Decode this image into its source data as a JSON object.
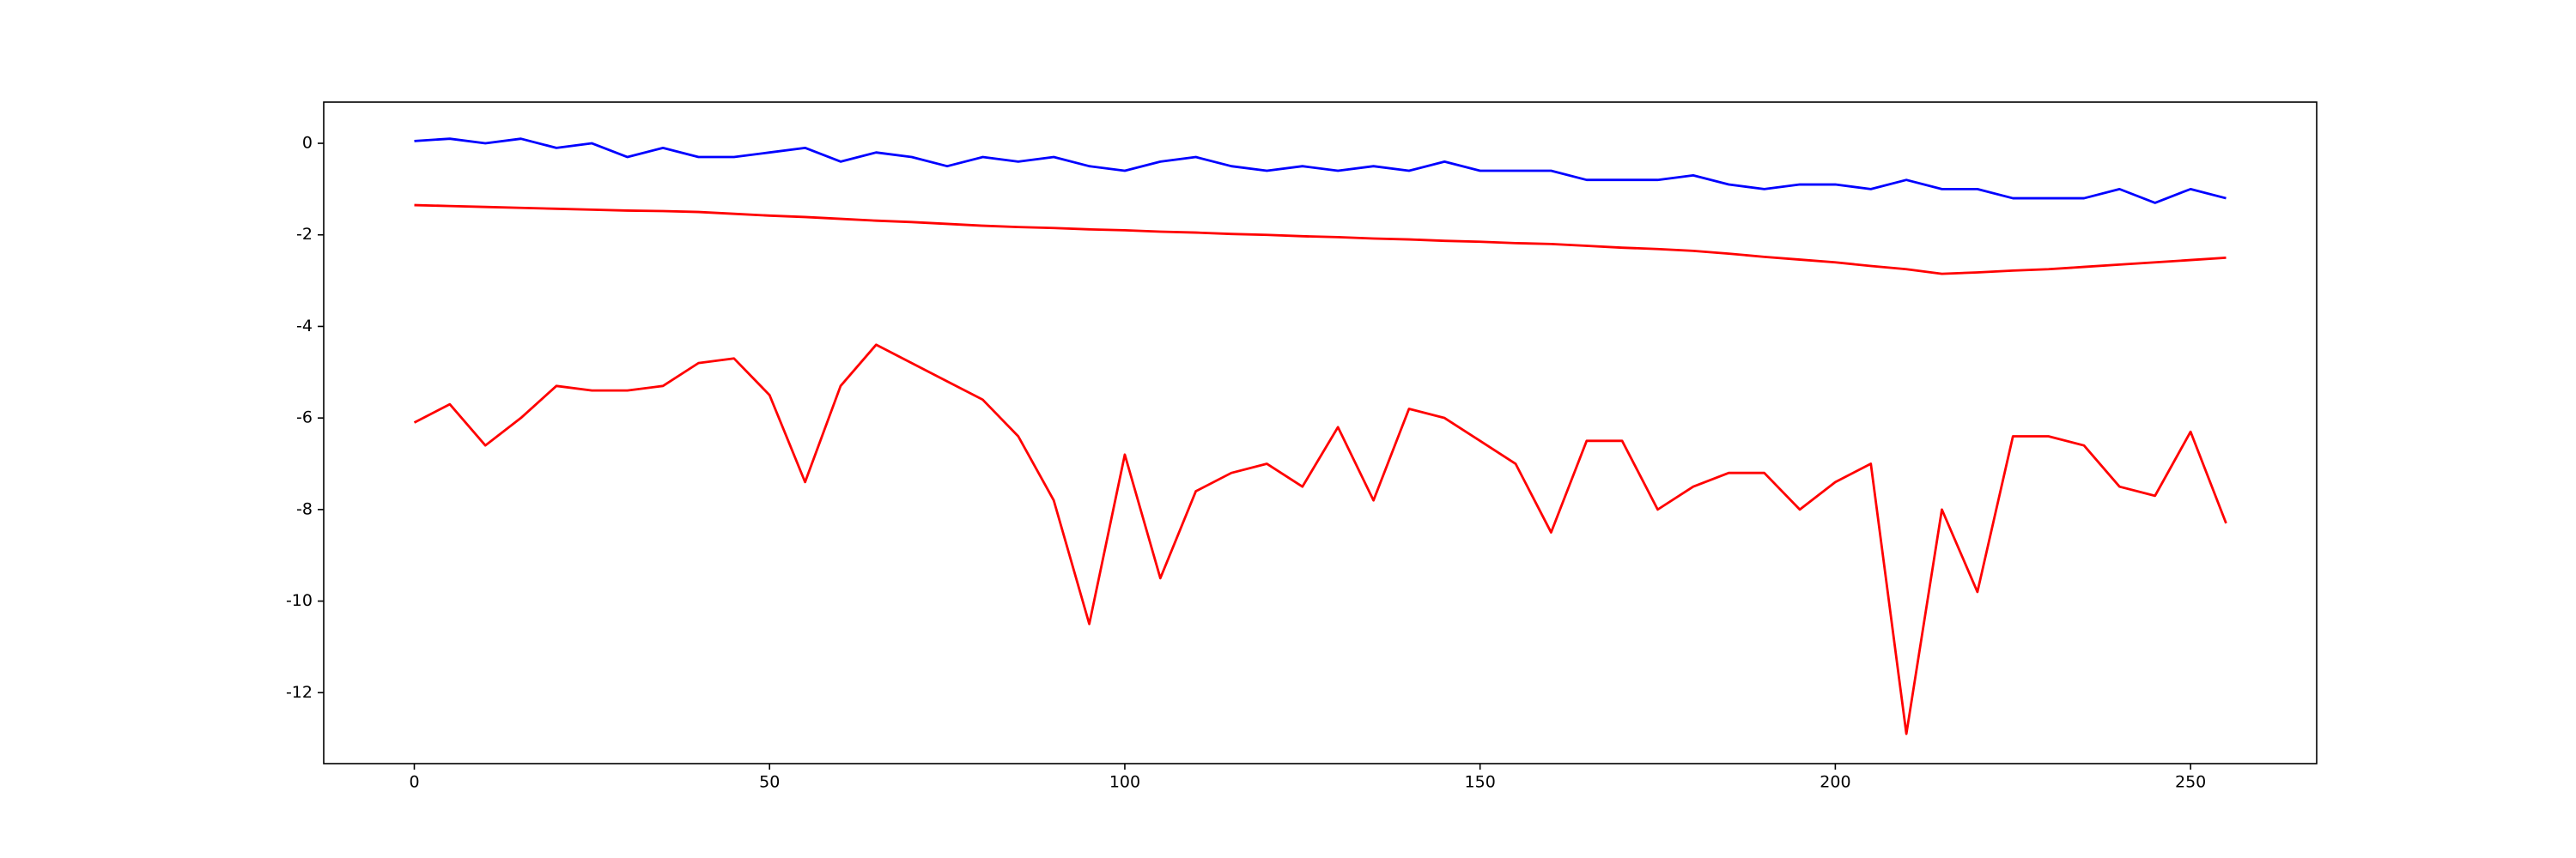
{
  "chart_data": {
    "type": "line",
    "x": [
      0,
      5,
      10,
      15,
      20,
      25,
      30,
      35,
      40,
      45,
      50,
      55,
      60,
      65,
      70,
      75,
      80,
      85,
      90,
      95,
      100,
      105,
      110,
      115,
      120,
      125,
      130,
      135,
      140,
      145,
      150,
      155,
      160,
      165,
      170,
      175,
      180,
      185,
      190,
      195,
      200,
      205,
      210,
      215,
      220,
      225,
      230,
      235,
      240,
      245,
      250,
      255
    ],
    "series": [
      {
        "color": "#0000ff",
        "values": [
          0.05,
          0.1,
          0.0,
          0.1,
          -0.1,
          0.0,
          -0.3,
          -0.1,
          -0.3,
          -0.3,
          -0.2,
          -0.1,
          -0.4,
          -0.2,
          -0.3,
          -0.5,
          -0.3,
          -0.4,
          -0.3,
          -0.5,
          -0.6,
          -0.4,
          -0.3,
          -0.5,
          -0.6,
          -0.5,
          -0.6,
          -0.5,
          -0.6,
          -0.4,
          -0.6,
          -0.6,
          -0.6,
          -0.8,
          -0.8,
          -0.8,
          -0.7,
          -0.9,
          -1.0,
          -0.9,
          -0.9,
          -1.0,
          -0.8,
          -1.0,
          -1.0,
          -1.2,
          -1.2,
          -1.2,
          -1.0,
          -1.3,
          -1.0,
          -1.2
        ]
      },
      {
        "color": "#ff0000",
        "values": [
          -1.35,
          -1.37,
          -1.39,
          -1.41,
          -1.43,
          -1.45,
          -1.47,
          -1.48,
          -1.5,
          -1.54,
          -1.58,
          -1.61,
          -1.65,
          -1.69,
          -1.72,
          -1.76,
          -1.8,
          -1.83,
          -1.85,
          -1.88,
          -1.9,
          -1.93,
          -1.95,
          -1.98,
          -2.0,
          -2.03,
          -2.05,
          -2.08,
          -2.1,
          -2.13,
          -2.15,
          -2.18,
          -2.2,
          -2.24,
          -2.28,
          -2.31,
          -2.35,
          -2.41,
          -2.48,
          -2.54,
          -2.6,
          -2.68,
          -2.75,
          -2.85,
          -2.82,
          -2.78,
          -2.75,
          -2.7,
          -2.65,
          -2.6,
          -2.55,
          -2.5
        ]
      },
      {
        "color": "#ff0000",
        "values": [
          -6.1,
          -5.7,
          -6.6,
          -6.0,
          -5.3,
          -5.4,
          -5.4,
          -5.3,
          -4.8,
          -4.7,
          -5.5,
          -7.4,
          -5.3,
          -4.4,
          -4.8,
          -5.2,
          -5.6,
          -6.4,
          -7.8,
          -10.5,
          -6.8,
          -9.5,
          -7.6,
          -7.2,
          -7.0,
          -7.5,
          -6.2,
          -7.8,
          -5.8,
          -6.0,
          -6.5,
          -7.0,
          -8.5,
          -6.5,
          -6.5,
          -8.0,
          -7.5,
          -7.2,
          -7.2,
          -8.0,
          -7.4,
          -7.0,
          -12.9,
          -8.0,
          -9.8,
          -6.4,
          -6.4,
          -6.6,
          -7.5,
          -7.7,
          -6.3,
          -8.3
        ]
      }
    ],
    "xlim": [
      -12.75,
      267.75
    ],
    "xticks": [
      0,
      50,
      100,
      150,
      200,
      250
    ],
    "ylim": [
      -13.55,
      0.9
    ],
    "yticks": [
      0,
      -2,
      -4,
      -6,
      -8,
      -10,
      -12
    ]
  }
}
